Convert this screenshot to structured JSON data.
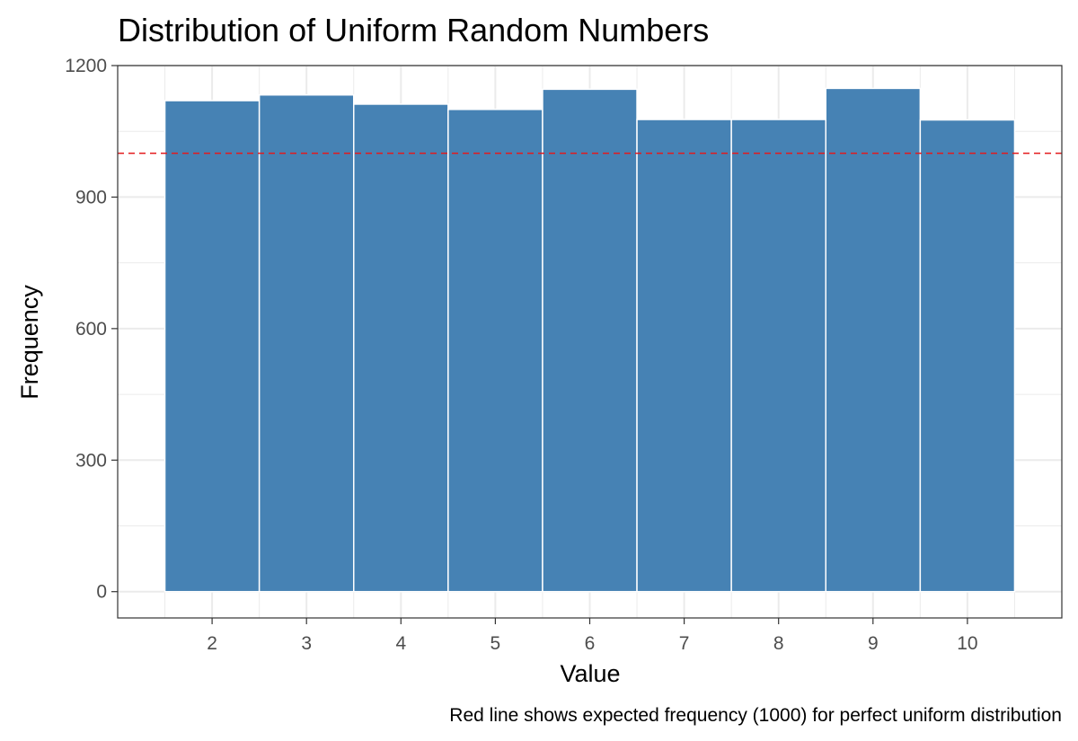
{
  "chart_data": {
    "type": "bar",
    "title": "Distribution of Uniform Random Numbers",
    "xlabel": "Value",
    "ylabel": "Frequency",
    "caption": "Red line shows expected frequency (1000) for perfect uniform distribution",
    "categories": [
      "2",
      "3",
      "4",
      "5",
      "6",
      "7",
      "8",
      "9",
      "10"
    ],
    "x": [
      2,
      3,
      4,
      5,
      6,
      7,
      8,
      9,
      10
    ],
    "values": [
      1120,
      1133,
      1112,
      1100,
      1146,
      1077,
      1077,
      1148,
      1076
    ],
    "xlim": [
      1,
      11
    ],
    "ylim": [
      -60,
      1200
    ],
    "y_ticks": [
      0,
      300,
      600,
      900,
      1200
    ],
    "expected_line": {
      "value": 1000,
      "color": "#e41a1c",
      "style": "dashed"
    },
    "bar_color": "#4682b4",
    "grid": true,
    "legend": "none"
  }
}
